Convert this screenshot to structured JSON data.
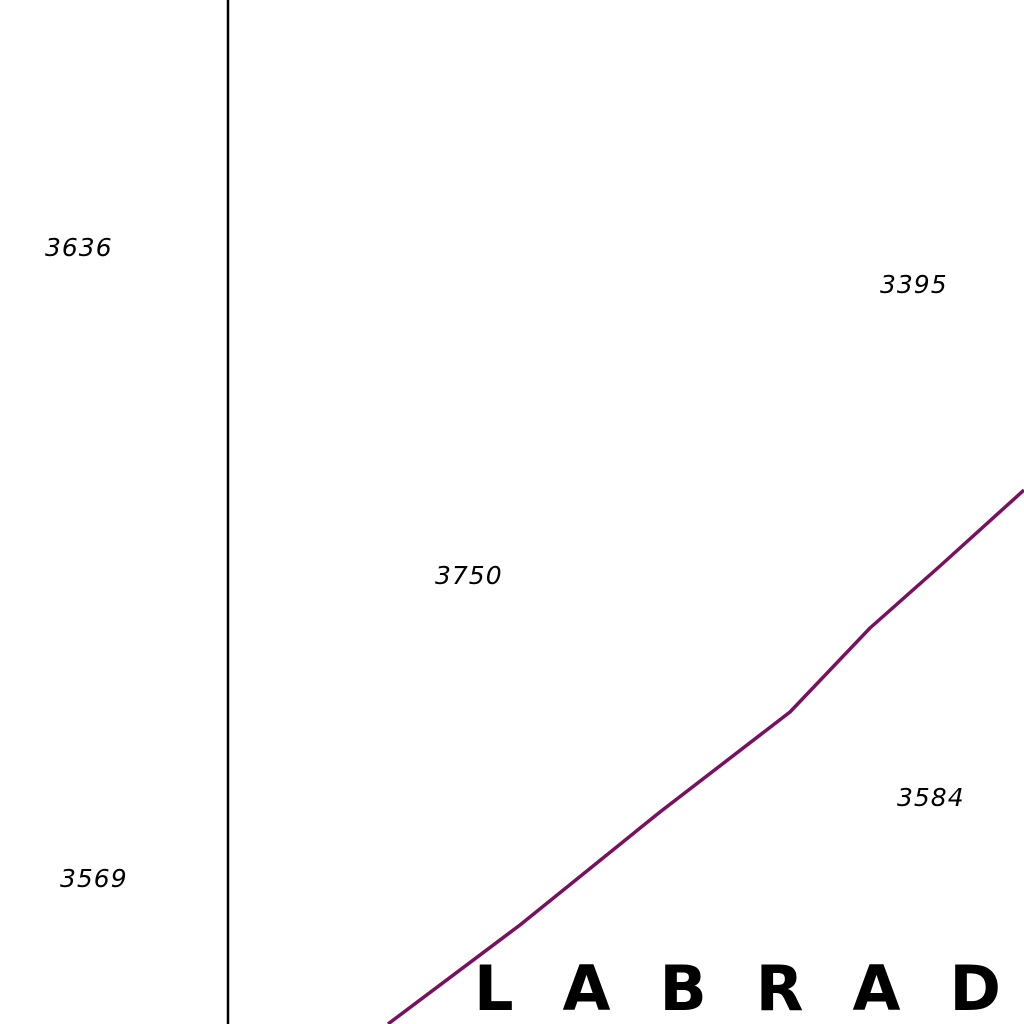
{
  "map": {
    "region_label": "LABRADO",
    "soundings": [
      {
        "id": "s1",
        "value": "3636"
      },
      {
        "id": "s2",
        "value": "3395"
      },
      {
        "id": "s3",
        "value": "3750"
      },
      {
        "id": "s4",
        "value": "3584"
      },
      {
        "id": "s5",
        "value": "3569"
      }
    ],
    "colors": {
      "boundary_line": "#7a1060",
      "grid_line": "#000000",
      "text": "#000000",
      "background": "#ffffff"
    }
  }
}
